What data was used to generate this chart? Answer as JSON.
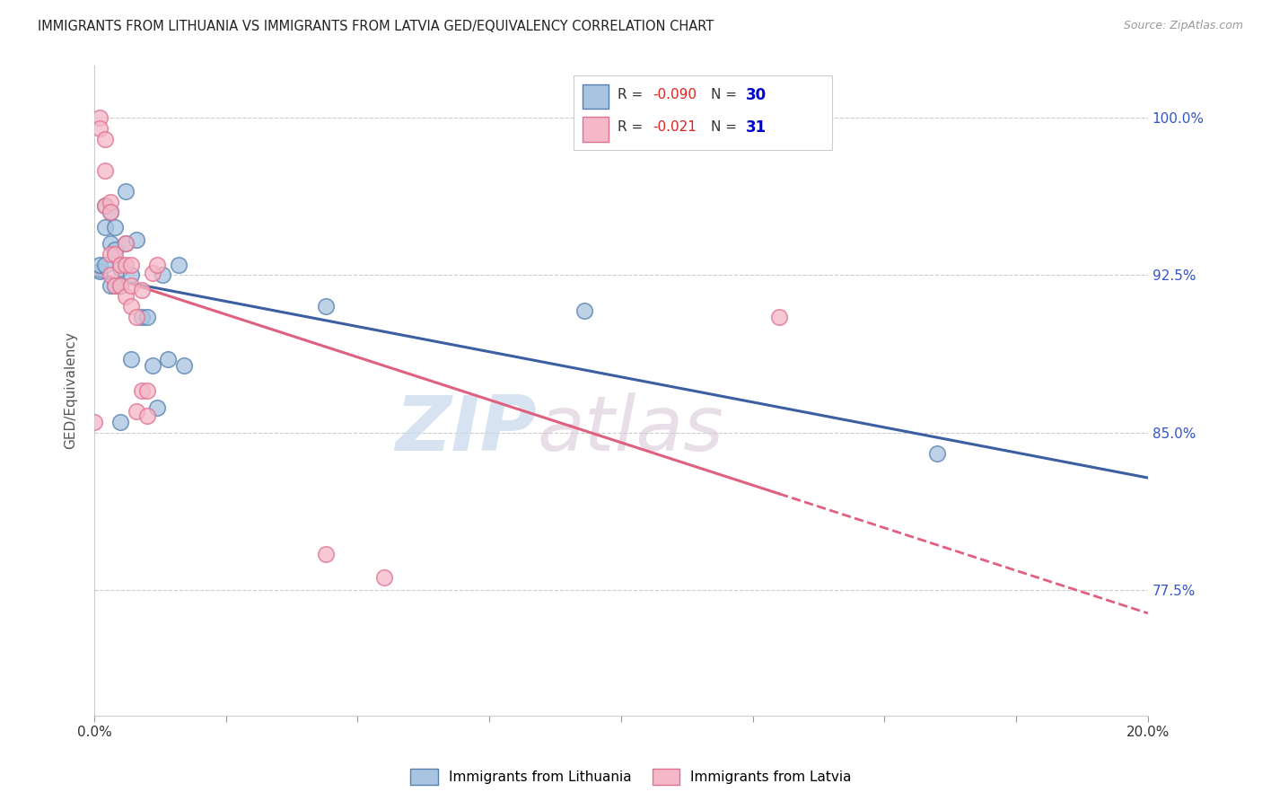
{
  "title": "IMMIGRANTS FROM LITHUANIA VS IMMIGRANTS FROM LATVIA GED/EQUIVALENCY CORRELATION CHART",
  "source": "Source: ZipAtlas.com",
  "ylabel": "GED/Equivalency",
  "xlim": [
    0.0,
    0.2
  ],
  "ylim": [
    0.715,
    1.025
  ],
  "yticks": [
    0.775,
    0.85,
    0.925,
    1.0
  ],
  "ytick_labels": [
    "77.5%",
    "85.0%",
    "92.5%",
    "100.0%"
  ],
  "blue_color": "#A8C4E0",
  "pink_color": "#F4B8C8",
  "blue_edge_color": "#5580B0",
  "pink_edge_color": "#E07090",
  "blue_line_color": "#3B5FA0",
  "pink_line_color": "#E06080",
  "background_color": "#FFFFFF",
  "grid_color": "#CCCCCC",
  "watermark_zip": "ZIP",
  "watermark_atlas": "atlas",
  "lithuania_x": [
    0.001,
    0.001,
    0.002,
    0.002,
    0.002,
    0.003,
    0.003,
    0.003,
    0.004,
    0.004,
    0.004,
    0.005,
    0.005,
    0.005,
    0.006,
    0.006,
    0.007,
    0.007,
    0.008,
    0.009,
    0.01,
    0.011,
    0.012,
    0.013,
    0.014,
    0.016,
    0.017,
    0.044,
    0.093,
    0.16
  ],
  "lithuania_y": [
    0.927,
    0.93,
    0.958,
    0.948,
    0.93,
    0.94,
    0.955,
    0.92,
    0.948,
    0.937,
    0.92,
    0.928,
    0.92,
    0.855,
    0.94,
    0.965,
    0.925,
    0.885,
    0.942,
    0.905,
    0.905,
    0.882,
    0.862,
    0.925,
    0.885,
    0.93,
    0.882,
    0.91,
    0.908,
    0.84
  ],
  "latvia_x": [
    0.0,
    0.001,
    0.001,
    0.002,
    0.002,
    0.002,
    0.003,
    0.003,
    0.003,
    0.003,
    0.004,
    0.004,
    0.005,
    0.005,
    0.006,
    0.006,
    0.006,
    0.007,
    0.007,
    0.007,
    0.008,
    0.008,
    0.009,
    0.009,
    0.01,
    0.01,
    0.011,
    0.012,
    0.044,
    0.055,
    0.13
  ],
  "latvia_y": [
    0.855,
    1.0,
    0.995,
    0.99,
    0.975,
    0.958,
    0.96,
    0.955,
    0.935,
    0.925,
    0.935,
    0.92,
    0.93,
    0.92,
    0.94,
    0.93,
    0.915,
    0.93,
    0.92,
    0.91,
    0.905,
    0.86,
    0.918,
    0.87,
    0.87,
    0.858,
    0.926,
    0.93,
    0.792,
    0.781,
    0.905
  ],
  "legend_r1": "R = -0.090",
  "legend_n1": "N = 30",
  "legend_r2": "R =  -0.021",
  "legend_n2": "N =  31",
  "r_color_blue": "#CC0000",
  "r_color_pink": "#CC0000",
  "n_color": "#0000BB"
}
